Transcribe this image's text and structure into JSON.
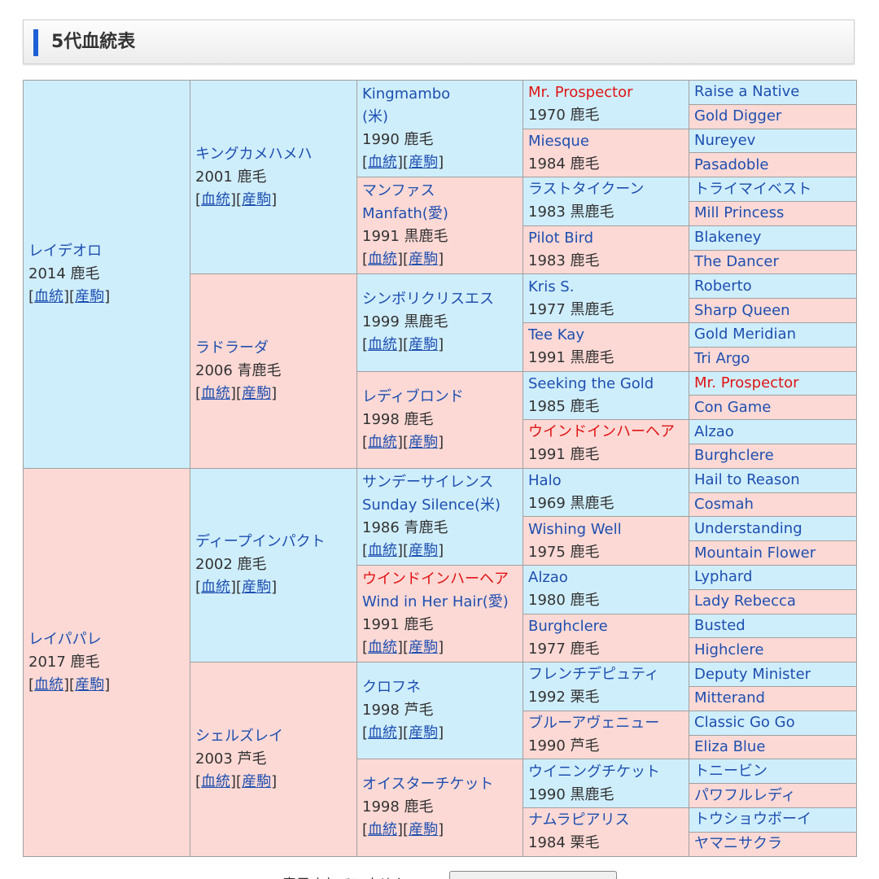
{
  "header": {
    "title": "5代血統表"
  },
  "links": {
    "pedigree": "血統",
    "progeny": "産駒"
  },
  "gen1": [
    {
      "name": "レイデオロ",
      "info": "2014 鹿毛"
    },
    {
      "name": "レイパパレ",
      "info": "2017 鹿毛"
    }
  ],
  "gen2": [
    {
      "name": "キングカメハメハ",
      "info": "2001 鹿毛"
    },
    {
      "name": "ラドラーダ",
      "info": "2006 青鹿毛"
    },
    {
      "name": "ディープインパクト",
      "info": "2002 鹿毛"
    },
    {
      "name": "シェルズレイ",
      "info": "2003 芦毛"
    }
  ],
  "gen3": [
    {
      "name": "Kingmambo",
      "alt": "(米)",
      "info": "1990 鹿毛"
    },
    {
      "name": "マンファス",
      "alt": "Manfath(愛)",
      "info": "1991 黒鹿毛"
    },
    {
      "name": "シンボリクリスエス",
      "alt": "",
      "info": "1999 黒鹿毛"
    },
    {
      "name": "レディブロンド",
      "alt": "",
      "info": "1998 鹿毛"
    },
    {
      "name": "サンデーサイレンス",
      "alt": "Sunday Silence(米)",
      "info": "1986 青鹿毛"
    },
    {
      "name": "ウインドインハーヘア",
      "alt": "Wind in Her Hair(愛)",
      "info": "1991 鹿毛"
    },
    {
      "name": "クロフネ",
      "alt": "",
      "info": "1998 芦毛"
    },
    {
      "name": "オイスターチケット",
      "alt": "",
      "info": "1998 鹿毛"
    }
  ],
  "gen4": [
    {
      "name": "Mr. Prospector",
      "info": "1970 鹿毛"
    },
    {
      "name": "Miesque",
      "info": "1984 鹿毛"
    },
    {
      "name": "ラストタイクーン",
      "info": "1983 黒鹿毛"
    },
    {
      "name": "Pilot Bird",
      "info": "1983 鹿毛"
    },
    {
      "name": "Kris S.",
      "info": "1977 黒鹿毛"
    },
    {
      "name": "Tee Kay",
      "info": "1991 黒鹿毛"
    },
    {
      "name": "Seeking the Gold",
      "info": "1985 鹿毛"
    },
    {
      "name": "ウインドインハーヘア",
      "info": "1991 鹿毛"
    },
    {
      "name": "Halo",
      "info": "1969 黒鹿毛"
    },
    {
      "name": "Wishing Well",
      "info": "1975 鹿毛"
    },
    {
      "name": "Alzao",
      "info": "1980 鹿毛"
    },
    {
      "name": "Burghclere",
      "info": "1977 鹿毛"
    },
    {
      "name": "フレンチデピュティ",
      "info": "1992 栗毛"
    },
    {
      "name": "ブルーアヴェニュー",
      "info": "1990 芦毛"
    },
    {
      "name": "ウイニングチケット",
      "info": "1990 黒鹿毛"
    },
    {
      "name": "ナムラピアリス",
      "info": "1984 栗毛"
    }
  ],
  "gen5": [
    "Raise a Native",
    "Gold Digger",
    "Nureyev",
    "Pasadoble",
    "トライマイベスト",
    "Mill Princess",
    "Blakeney",
    "The Dancer",
    "Roberto",
    "Sharp Queen",
    "Gold Meridian",
    "Tri Argo",
    "Mr. Prospector",
    "Con Game",
    "Alzao",
    "Burghclere",
    "Hail to Reason",
    "Cosmah",
    "Understanding",
    "Mountain Flower",
    "Lyphard",
    "Lady Rebecca",
    "Busted",
    "Highclere",
    "Deputy Minister",
    "Mitterand",
    "Classic Go Go",
    "Eliza Blue",
    "トニービン",
    "パワフルレディ",
    "トウショウボーイ",
    "ヤマニサクラ"
  ],
  "colors": {
    "male_bg": "#cfeefc",
    "female_bg": "#fdd9d5",
    "link": "#1d4fb0",
    "inbreed_red": "#e01414",
    "header_accent": "#1f5fd6"
  },
  "inbreeding_highlight": [
    "Mr. Prospector",
    "ウインドインハーヘア"
  ],
  "footer": {
    "text": "…表示されていません",
    "button": "…"
  }
}
